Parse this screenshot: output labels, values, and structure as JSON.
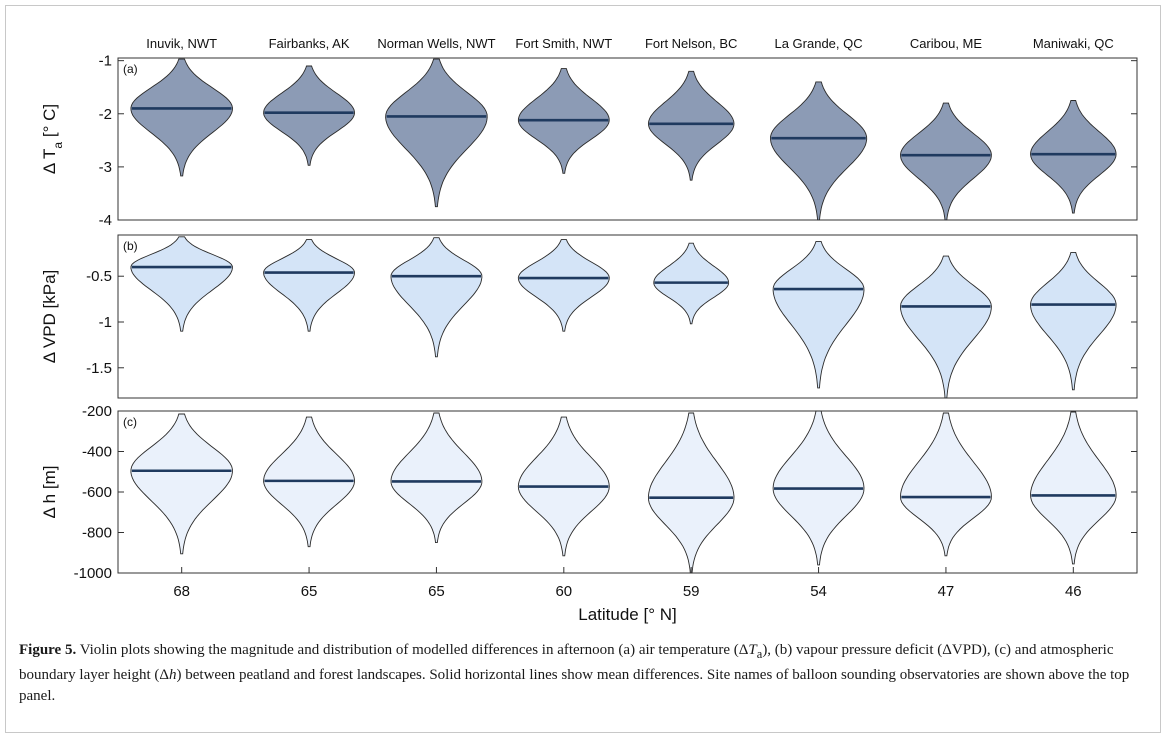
{
  "chart_data": {
    "type": "violin",
    "sites": [
      "Inuvik, NWT",
      "Fairbanks, AK",
      "Norman Wells, NWT",
      "Fort Smith, NWT",
      "Fort Nelson, BC",
      "La Grande, QC",
      "Caribou, ME",
      "Maniwaki, QC"
    ],
    "latitudes": [
      "68",
      "65",
      "65",
      "60",
      "59",
      "54",
      "47",
      "46"
    ],
    "xlabel": "Latitude [° N]",
    "panels": [
      {
        "id": "a",
        "label": "(a)",
        "ylabel_main": "Δ T",
        "ylabel_sub": "a",
        "ylabel_unit": " [° C]",
        "ylim": [
          -4,
          -0.95
        ],
        "yticks": [
          -1,
          -2,
          -3,
          -4
        ],
        "fill": "#8c9bb5",
        "means": [
          -1.9,
          -1.98,
          -2.05,
          -2.12,
          -2.19,
          -2.46,
          -2.78,
          -2.76
        ],
        "mins": [
          -3.17,
          -2.97,
          -3.75,
          -3.12,
          -3.25,
          -4.0,
          -4.0,
          -3.87
        ],
        "maxs": [
          -0.97,
          -1.1,
          -0.97,
          -1.15,
          -1.2,
          -1.4,
          -1.8,
          -1.75
        ],
        "halfwidths": [
          0.95,
          0.85,
          0.95,
          0.85,
          0.8,
          0.9,
          0.85,
          0.8
        ]
      },
      {
        "id": "b",
        "label": "(b)",
        "ylabel_main": "Δ VPD [kPa]",
        "ylabel_sub": "",
        "ylabel_unit": "",
        "ylim": [
          -1.83,
          -0.05
        ],
        "yticks": [
          -0.5,
          -1,
          -1.5
        ],
        "fill": "#d4e4f7",
        "means": [
          -0.4,
          -0.46,
          -0.5,
          -0.52,
          -0.57,
          -0.64,
          -0.83,
          -0.81
        ],
        "mins": [
          -1.1,
          -1.1,
          -1.38,
          -1.1,
          -1.02,
          -1.72,
          -1.83,
          -1.74
        ],
        "maxs": [
          -0.07,
          -0.1,
          -0.08,
          -0.1,
          -0.14,
          -0.12,
          -0.28,
          -0.24
        ],
        "halfwidths": [
          0.95,
          0.85,
          0.85,
          0.85,
          0.7,
          0.85,
          0.85,
          0.8
        ]
      },
      {
        "id": "c",
        "label": "(c)",
        "ylabel_main": "Δ h [m]",
        "ylabel_sub": "",
        "ylabel_unit": "",
        "ylim": [
          -1000,
          -200
        ],
        "yticks": [
          -200,
          -400,
          -600,
          -800,
          -1000
        ],
        "fill": "#eaf1fb",
        "means": [
          -495,
          -545,
          -548,
          -573,
          -628,
          -583,
          -625,
          -617
        ],
        "mins": [
          -905,
          -870,
          -850,
          -915,
          -1000,
          -960,
          -915,
          -955
        ],
        "maxs": [
          -215,
          -230,
          -210,
          -230,
          -210,
          -200,
          -210,
          -205
        ],
        "halfwidths": [
          0.95,
          0.85,
          0.85,
          0.85,
          0.8,
          0.85,
          0.85,
          0.8
        ]
      }
    ]
  },
  "caption": {
    "label": "Figure 5.",
    "text1": " Violin plots showing the magnitude and distribution of modelled differences in afternoon (a) air temperature (Δ",
    "var1": "T",
    "sub1": "a",
    "text2": "), (b) vapour pressure deficit (ΔVPD), (c) and atmospheric boundary layer height (Δ",
    "var2": "h",
    "text3": ") between peatland and forest landscapes. Solid horizontal lines show mean differences. Site names of balloon sounding observatories are shown above the top panel."
  }
}
